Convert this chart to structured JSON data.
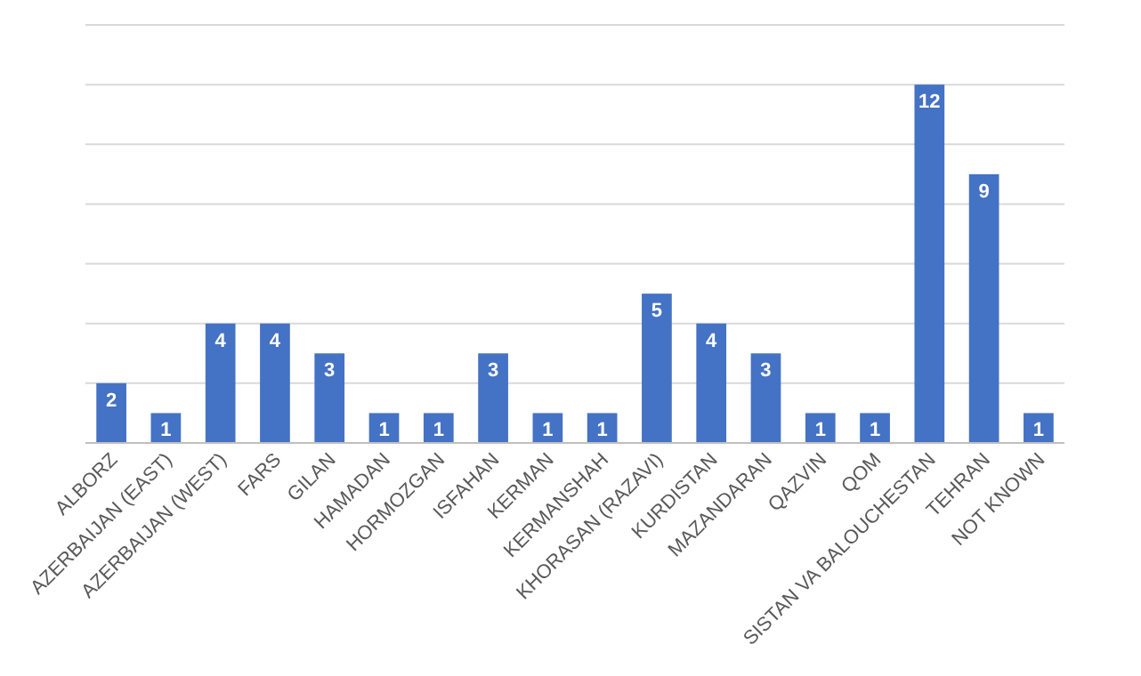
{
  "chart_data": {
    "type": "bar",
    "categories": [
      "ALBORZ",
      "AZERBAIJAN (EAST)",
      "AZERBAIJAN (WEST)",
      "FARS",
      "GILAN",
      "HAMADAN",
      "HORMOZGAN",
      "ISFAHAN",
      "KERMAN",
      "KERMANSHAH",
      "KHORASAN (RAZAVI)",
      "KURDISTAN",
      "MAZANDARAN",
      "QAZVIN",
      "QOM",
      "SISTAN VA BALOUCHESTAN",
      "TEHRAN",
      "NOT KNOWN"
    ],
    "values": [
      2,
      1,
      4,
      4,
      3,
      1,
      1,
      3,
      1,
      1,
      5,
      4,
      3,
      1,
      1,
      12,
      9,
      1
    ],
    "color": "#4472c4",
    "ylim": [
      0,
      14
    ],
    "yticks": [
      {
        "value": 0,
        "label": null
      },
      {
        "value": 2,
        "label": null
      },
      {
        "value": 4,
        "label": null
      },
      {
        "value": 6,
        "label": null
      },
      {
        "value": 8,
        "label": null
      },
      {
        "value": 10,
        "label": null
      },
      {
        "value": 12,
        "label": null
      },
      {
        "value": 14,
        "label": null
      }
    ],
    "grid": "y",
    "tick_labels": "x",
    "data_labels": true
  }
}
